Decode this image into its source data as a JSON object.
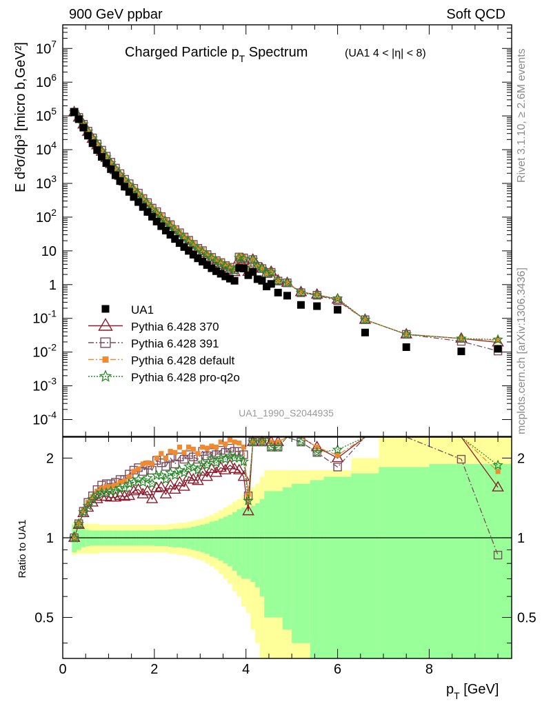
{
  "header": {
    "left": "900 GeV ppbar",
    "right": "Soft QCD",
    "title_main": "Charged Particle p",
    "title_sub": "T",
    "title_rest": " Spectrum",
    "title_cut": "(UA1   4 < |η| < 8)",
    "analysis_id": "UA1_1990_S2044935",
    "side_rivet": "Rivet 3.1.10, ≥ 2.6M events",
    "side_site": "mcplots.cern.ch [arXiv:1306.3436]"
  },
  "axes": {
    "ylabel_main": "E d³σ/dp³ [micro b,GeV²]",
    "ylabel_ratio": "Ratio to UA1",
    "xlabel_p": "p",
    "xlabel_sub": "T",
    "xlabel_unit": " [GeV]"
  },
  "legend": [
    {
      "label": "UA1",
      "color": "#000000",
      "marker": "square-filled"
    },
    {
      "label": "Pythia 6.428 370",
      "color": "#8b1a2b",
      "marker": "triangle-open"
    },
    {
      "label": "Pythia 6.428 391",
      "color": "#7a4a5a",
      "marker": "square-open"
    },
    {
      "label": "Pythia 6.428 default",
      "color": "#f08a30",
      "marker": "square-filled-small"
    },
    {
      "label": "Pythia 6.428 pro-q2o",
      "color": "#2a8a2a",
      "marker": "star"
    }
  ],
  "chart_data": {
    "type": "scatter",
    "title": "Charged Particle pT Spectrum (UA1 4 < |η| < 8)",
    "xlabel": "pT [GeV]",
    "ylabel": "E d3σ/dp3 [micro b,GeV2]",
    "xlim": [
      0,
      9.8
    ],
    "ylim_log": [
      -4.5,
      7.7
    ],
    "ratio_ylim": [
      0.35,
      2.4
    ],
    "x_ticks": [
      0,
      2,
      4,
      6,
      8
    ],
    "y_ticks_main": [
      "10^-4",
      "10^-3",
      "10^-2",
      "10^-1",
      "1",
      "10",
      "10^2",
      "10^3",
      "10^4",
      "10^5",
      "10^6",
      "10^7"
    ],
    "y_ticks_ratio": [
      "0.5",
      "1",
      "2"
    ],
    "data_x": [
      0.25,
      0.35,
      0.45,
      0.55,
      0.65,
      0.75,
      0.85,
      0.95,
      1.05,
      1.15,
      1.25,
      1.35,
      1.45,
      1.55,
      1.65,
      1.75,
      1.85,
      1.95,
      2.05,
      2.15,
      2.25,
      2.35,
      2.45,
      2.55,
      2.65,
      2.75,
      2.85,
      2.95,
      3.05,
      3.15,
      3.25,
      3.35,
      3.45,
      3.55,
      3.65,
      3.75,
      3.85,
      3.95,
      4.05,
      4.15,
      4.25,
      4.35,
      4.45,
      4.55,
      4.7,
      4.9,
      5.2,
      5.55,
      6.0,
      6.6,
      7.5,
      8.7,
      9.5
    ],
    "ua1": [
      130000,
      80000,
      45000,
      26000,
      15500,
      9700,
      6100,
      4000,
      2650,
      1750,
      1170,
      800,
      560,
      395,
      280,
      200,
      143,
      103,
      74,
      54,
      40,
      30,
      22.5,
      17,
      13,
      10,
      7.7,
      6,
      4.8,
      3.8,
      3.05,
      2.5,
      2.1,
      1.75,
      1.5,
      1.3,
      3.1,
      3.0,
      1.9,
      2.4,
      1.45,
      1.3,
      0.88,
      1.05,
      0.58,
      0.47,
      0.25,
      0.23,
      0.18,
      0.038,
      0.014,
      0.0105,
      0.0125
    ],
    "ratio_370": [
      1.0,
      1.12,
      1.24,
      1.3,
      1.36,
      1.4,
      1.43,
      1.43,
      1.42,
      1.42,
      1.44,
      1.43,
      1.44,
      1.5,
      1.52,
      1.46,
      1.5,
      1.4,
      1.54,
      1.55,
      1.46,
      1.58,
      1.52,
      1.62,
      1.56,
      1.7,
      1.66,
      1.64,
      1.78,
      1.7,
      1.82,
      1.76,
      1.84,
      1.8,
      1.88,
      1.82,
      1.8,
      1.7,
      1.26,
      2.3,
      2.4,
      2.3,
      2.4,
      2.3,
      2.3,
      2.4,
      2.4,
      2.2,
      2.0,
      2.4,
      2.4,
      2.4,
      1.55
    ],
    "ratio_391": [
      1.0,
      1.13,
      1.26,
      1.36,
      1.44,
      1.52,
      1.58,
      1.6,
      1.6,
      1.62,
      1.66,
      1.66,
      1.74,
      1.8,
      1.84,
      1.78,
      1.88,
      1.8,
      1.96,
      1.92,
      1.86,
      2.0,
      1.9,
      2.02,
      1.98,
      2.06,
      2.02,
      1.98,
      2.12,
      2.04,
      2.1,
      2.06,
      2.14,
      2.1,
      2.18,
      2.12,
      2.12,
      2.06,
      1.44,
      2.3,
      2.4,
      2.3,
      2.4,
      2.2,
      2.2,
      2.4,
      2.3,
      2.1,
      1.85,
      2.4,
      2.4,
      1.98,
      0.86
    ],
    "ratio_default": [
      1.0,
      1.14,
      1.27,
      1.36,
      1.43,
      1.5,
      1.54,
      1.56,
      1.56,
      1.58,
      1.62,
      1.64,
      1.7,
      1.78,
      1.82,
      1.9,
      1.92,
      1.9,
      2.0,
      2.08,
      2.0,
      2.12,
      2.1,
      2.2,
      2.1,
      2.2,
      2.16,
      2.08,
      2.2,
      2.18,
      2.22,
      2.2,
      2.3,
      2.26,
      2.34,
      2.3,
      2.28,
      2.2,
      1.46,
      2.3,
      2.4,
      2.3,
      2.4,
      2.3,
      2.3,
      2.4,
      2.4,
      2.2,
      2.05,
      2.4,
      2.4,
      2.4,
      1.78
    ],
    "ratio_proq2o": [
      1.0,
      1.13,
      1.25,
      1.32,
      1.4,
      1.45,
      1.48,
      1.48,
      1.5,
      1.5,
      1.54,
      1.54,
      1.6,
      1.62,
      1.66,
      1.62,
      1.68,
      1.6,
      1.72,
      1.72,
      1.66,
      1.76,
      1.72,
      1.8,
      1.76,
      1.86,
      1.84,
      1.8,
      1.92,
      1.88,
      1.98,
      1.92,
      2.0,
      1.98,
      2.04,
      2.0,
      2.0,
      1.94,
      1.38,
      2.3,
      2.4,
      2.3,
      2.4,
      2.2,
      2.2,
      2.4,
      2.3,
      2.1,
      2.15,
      2.4,
      2.4,
      2.4,
      1.88
    ],
    "band_edges": [
      0.2,
      0.3,
      0.4,
      0.5,
      0.6,
      0.7,
      0.8,
      0.9,
      1.0,
      1.1,
      1.2,
      1.3,
      1.4,
      1.5,
      1.6,
      1.7,
      1.8,
      1.9,
      2.0,
      2.1,
      2.2,
      2.3,
      2.4,
      2.5,
      2.6,
      2.7,
      2.8,
      2.9,
      3.0,
      3.1,
      3.2,
      3.3,
      3.4,
      3.5,
      3.6,
      3.7,
      3.8,
      3.9,
      4.0,
      4.1,
      4.2,
      4.3,
      4.4,
      4.5,
      4.6,
      4.8,
      5.0,
      5.4,
      5.7,
      6.3,
      6.9,
      8.0,
      9.2,
      9.8
    ],
    "band_inner_frac": [
      0.12,
      0.1,
      0.08,
      0.07,
      0.065,
      0.065,
      0.065,
      0.065,
      0.065,
      0.065,
      0.065,
      0.065,
      0.065,
      0.065,
      0.065,
      0.065,
      0.065,
      0.065,
      0.07,
      0.07,
      0.07,
      0.075,
      0.08,
      0.08,
      0.085,
      0.09,
      0.1,
      0.11,
      0.12,
      0.13,
      0.15,
      0.16,
      0.18,
      0.2,
      0.22,
      0.25,
      0.28,
      0.3,
      0.3,
      0.32,
      0.35,
      0.4,
      0.5,
      0.5,
      0.5,
      0.55,
      0.6,
      0.65,
      0.7,
      0.75,
      0.85,
      0.9,
      0.9
    ],
    "band_outer_frac": [
      0.14,
      0.13,
      0.13,
      0.13,
      0.13,
      0.13,
      0.12,
      0.12,
      0.12,
      0.12,
      0.12,
      0.12,
      0.12,
      0.12,
      0.12,
      0.12,
      0.12,
      0.12,
      0.12,
      0.12,
      0.12,
      0.13,
      0.13,
      0.14,
      0.14,
      0.15,
      0.16,
      0.17,
      0.18,
      0.2,
      0.22,
      0.24,
      0.27,
      0.3,
      0.33,
      0.37,
      0.4,
      0.45,
      0.48,
      0.55,
      0.6,
      0.7,
      0.8,
      0.8,
      0.8,
      0.8,
      0.8,
      0.8,
      0.8,
      1.0,
      1.5,
      1.5,
      1.5
    ]
  }
}
